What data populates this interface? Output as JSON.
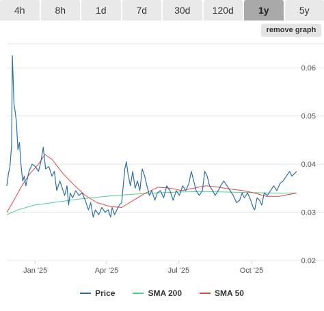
{
  "tabs": [
    {
      "label": "4h",
      "active": false
    },
    {
      "label": "8h",
      "active": false
    },
    {
      "label": "1d",
      "active": false
    },
    {
      "label": "7d",
      "active": false
    },
    {
      "label": "30d",
      "active": false
    },
    {
      "label": "120d",
      "active": false
    },
    {
      "label": "1y",
      "active": true
    },
    {
      "label": "5y",
      "active": false
    }
  ],
  "remove_graph_label": "remove graph",
  "legend": {
    "price": "Price",
    "sma200": "SMA 200",
    "sma50": "SMA 50"
  },
  "colors": {
    "price": "#2c6fa6",
    "sma200": "#4fcf8e",
    "sma50": "#e04848",
    "grid": "#e6e6e6",
    "axis_text": "#555555"
  },
  "chart_data": {
    "type": "line",
    "title": "",
    "xlabel": "",
    "ylabel": "",
    "ylim": [
      0.02,
      0.065
    ],
    "yticks": [
      0.02,
      0.03,
      0.04,
      0.05,
      0.06
    ],
    "ytick_labels": [
      "0.02",
      "0.03",
      "0.04",
      "0.05",
      "0.06"
    ],
    "xlim": [
      "2024-11-26",
      "2025-11-27"
    ],
    "xticks": [
      "2025-01-01",
      "2025-04-01",
      "2025-07-01",
      "2025-10-01"
    ],
    "xtick_labels": [
      "Jan '25",
      "Apr '25",
      "Jul '25",
      "Oct '25"
    ],
    "grid": true,
    "legend_position": "bottom",
    "series": [
      {
        "name": "Price",
        "points": [
          [
            "2024-11-26",
            0.0355
          ],
          [
            "2024-11-28",
            0.038
          ],
          [
            "2024-11-30",
            0.0395
          ],
          [
            "2024-12-02",
            0.044
          ],
          [
            "2024-12-03",
            0.0625
          ],
          [
            "2024-12-04",
            0.0575
          ],
          [
            "2024-12-05",
            0.0525
          ],
          [
            "2024-12-06",
            0.0515
          ],
          [
            "2024-12-08",
            0.049
          ],
          [
            "2024-12-10",
            0.043
          ],
          [
            "2024-12-12",
            0.0445
          ],
          [
            "2024-12-14",
            0.0395
          ],
          [
            "2024-12-16",
            0.0365
          ],
          [
            "2024-12-18",
            0.0375
          ],
          [
            "2024-12-20",
            0.0355
          ],
          [
            "2024-12-24",
            0.0385
          ],
          [
            "2024-12-28",
            0.04
          ],
          [
            "2025-01-01",
            0.0395
          ],
          [
            "2025-01-05",
            0.0385
          ],
          [
            "2025-01-08",
            0.0405
          ],
          [
            "2025-01-11",
            0.0435
          ],
          [
            "2025-01-14",
            0.039
          ],
          [
            "2025-01-18",
            0.0395
          ],
          [
            "2025-01-22",
            0.0375
          ],
          [
            "2025-01-25",
            0.0385
          ],
          [
            "2025-01-28",
            0.0345
          ],
          [
            "2025-02-01",
            0.0365
          ],
          [
            "2025-02-04",
            0.035
          ],
          [
            "2025-02-07",
            0.0335
          ],
          [
            "2025-02-10",
            0.0355
          ],
          [
            "2025-02-12",
            0.0315
          ],
          [
            "2025-02-14",
            0.034
          ],
          [
            "2025-02-17",
            0.033
          ],
          [
            "2025-02-21",
            0.0345
          ],
          [
            "2025-02-25",
            0.0335
          ],
          [
            "2025-03-01",
            0.034
          ],
          [
            "2025-03-05",
            0.0325
          ],
          [
            "2025-03-09",
            0.0305
          ],
          [
            "2025-03-12",
            0.032
          ],
          [
            "2025-03-15",
            0.029
          ],
          [
            "2025-03-18",
            0.0305
          ],
          [
            "2025-03-22",
            0.0295
          ],
          [
            "2025-03-26",
            0.031
          ],
          [
            "2025-03-30",
            0.03
          ],
          [
            "2025-04-03",
            0.0305
          ],
          [
            "2025-04-06",
            0.029
          ],
          [
            "2025-04-08",
            0.031
          ],
          [
            "2025-04-11",
            0.0295
          ],
          [
            "2025-04-14",
            0.0305
          ],
          [
            "2025-04-17",
            0.0315
          ],
          [
            "2025-04-20",
            0.032
          ],
          [
            "2025-04-22",
            0.0355
          ],
          [
            "2025-04-24",
            0.039
          ],
          [
            "2025-04-26",
            0.0405
          ],
          [
            "2025-04-28",
            0.038
          ],
          [
            "2025-05-01",
            0.0355
          ],
          [
            "2025-05-04",
            0.0385
          ],
          [
            "2025-05-07",
            0.035
          ],
          [
            "2025-05-10",
            0.0365
          ],
          [
            "2025-05-13",
            0.0345
          ],
          [
            "2025-05-16",
            0.039
          ],
          [
            "2025-05-19",
            0.0375
          ],
          [
            "2025-05-22",
            0.0355
          ],
          [
            "2025-05-25",
            0.0335
          ],
          [
            "2025-05-28",
            0.0345
          ],
          [
            "2025-06-01",
            0.0325
          ],
          [
            "2025-06-04",
            0.034
          ],
          [
            "2025-06-08",
            0.0345
          ],
          [
            "2025-06-12",
            0.033
          ],
          [
            "2025-06-16",
            0.0355
          ],
          [
            "2025-06-20",
            0.0345
          ],
          [
            "2025-06-24",
            0.0325
          ],
          [
            "2025-06-28",
            0.0345
          ],
          [
            "2025-07-02",
            0.0335
          ],
          [
            "2025-07-06",
            0.0355
          ],
          [
            "2025-07-10",
            0.0345
          ],
          [
            "2025-07-14",
            0.036
          ],
          [
            "2025-07-17",
            0.0385
          ],
          [
            "2025-07-20",
            0.0365
          ],
          [
            "2025-07-23",
            0.0345
          ],
          [
            "2025-07-27",
            0.0335
          ],
          [
            "2025-07-31",
            0.0345
          ],
          [
            "2025-08-03",
            0.0385
          ],
          [
            "2025-08-06",
            0.0375
          ],
          [
            "2025-08-09",
            0.0355
          ],
          [
            "2025-08-13",
            0.0345
          ],
          [
            "2025-08-16",
            0.0335
          ],
          [
            "2025-08-20",
            0.0345
          ],
          [
            "2025-08-23",
            0.0355
          ],
          [
            "2025-08-27",
            0.0365
          ],
          [
            "2025-08-31",
            0.0355
          ],
          [
            "2025-09-04",
            0.0345
          ],
          [
            "2025-09-08",
            0.0335
          ],
          [
            "2025-09-12",
            0.032
          ],
          [
            "2025-09-16",
            0.0325
          ],
          [
            "2025-09-19",
            0.034
          ],
          [
            "2025-09-22",
            0.033
          ],
          [
            "2025-09-26",
            0.034
          ],
          [
            "2025-09-30",
            0.0325
          ],
          [
            "2025-10-03",
            0.031
          ],
          [
            "2025-10-05",
            0.0305
          ],
          [
            "2025-10-08",
            0.033
          ],
          [
            "2025-10-11",
            0.0325
          ],
          [
            "2025-10-14",
            0.0315
          ],
          [
            "2025-10-17",
            0.034
          ],
          [
            "2025-10-21",
            0.0335
          ],
          [
            "2025-10-25",
            0.0345
          ],
          [
            "2025-10-29",
            0.0355
          ],
          [
            "2025-11-02",
            0.0345
          ],
          [
            "2025-11-06",
            0.036
          ],
          [
            "2025-11-10",
            0.0365
          ],
          [
            "2025-11-14",
            0.0375
          ],
          [
            "2025-11-18",
            0.0385
          ],
          [
            "2025-11-21",
            0.0375
          ],
          [
            "2025-11-24",
            0.038
          ],
          [
            "2025-11-27",
            0.0385
          ]
        ]
      },
      {
        "name": "SMA 200",
        "points": [
          [
            "2024-11-26",
            0.0295
          ],
          [
            "2024-12-10",
            0.0305
          ],
          [
            "2024-12-31",
            0.0315
          ],
          [
            "2025-01-31",
            0.0322
          ],
          [
            "2025-02-28",
            0.0328
          ],
          [
            "2025-03-31",
            0.0333
          ],
          [
            "2025-04-30",
            0.0337
          ],
          [
            "2025-05-31",
            0.034
          ],
          [
            "2025-06-30",
            0.0342
          ],
          [
            "2025-07-31",
            0.0343
          ],
          [
            "2025-08-31",
            0.0342
          ],
          [
            "2025-09-30",
            0.0341
          ],
          [
            "2025-10-31",
            0.034
          ],
          [
            "2025-11-27",
            0.034
          ]
        ]
      },
      {
        "name": "SMA 50",
        "points": [
          [
            "2024-11-26",
            0.03
          ],
          [
            "2024-12-05",
            0.0325
          ],
          [
            "2024-12-15",
            0.0355
          ],
          [
            "2024-12-25",
            0.038
          ],
          [
            "2025-01-05",
            0.04
          ],
          [
            "2025-01-13",
            0.042
          ],
          [
            "2025-01-22",
            0.041
          ],
          [
            "2025-02-05",
            0.038
          ],
          [
            "2025-02-20",
            0.0355
          ],
          [
            "2025-03-05",
            0.0335
          ],
          [
            "2025-03-20",
            0.032
          ],
          [
            "2025-04-05",
            0.0312
          ],
          [
            "2025-04-20",
            0.031
          ],
          [
            "2025-05-05",
            0.0325
          ],
          [
            "2025-05-20",
            0.034
          ],
          [
            "2025-06-05",
            0.0352
          ],
          [
            "2025-06-20",
            0.035
          ],
          [
            "2025-07-05",
            0.0345
          ],
          [
            "2025-07-20",
            0.035
          ],
          [
            "2025-08-05",
            0.0355
          ],
          [
            "2025-08-20",
            0.0352
          ],
          [
            "2025-09-05",
            0.0348
          ],
          [
            "2025-09-20",
            0.0345
          ],
          [
            "2025-10-05",
            0.034
          ],
          [
            "2025-10-20",
            0.0333
          ],
          [
            "2025-11-05",
            0.0333
          ],
          [
            "2025-11-27",
            0.034
          ]
        ]
      }
    ]
  }
}
